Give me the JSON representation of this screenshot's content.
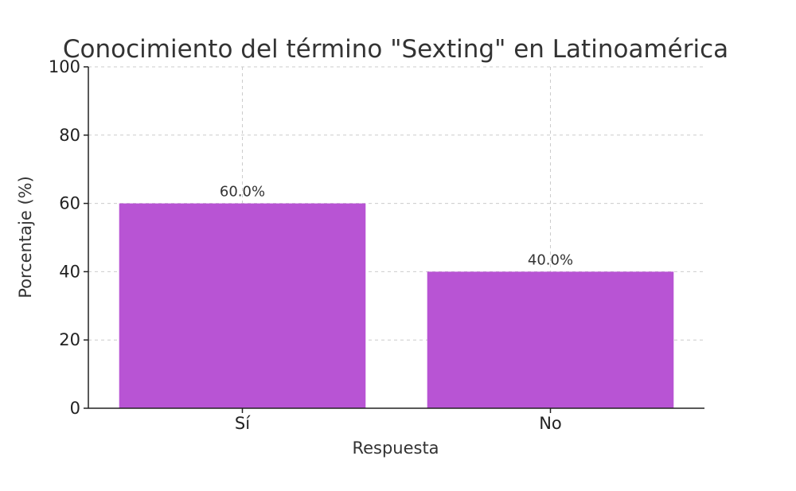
{
  "chart_data": {
    "type": "bar",
    "title": "Conocimiento del término \"Sexting\" en Latinoamérica",
    "xlabel": "Respuesta",
    "ylabel": "Porcentaje (%)",
    "categories": [
      "Sí",
      "No"
    ],
    "values": [
      60,
      40
    ],
    "data_labels": [
      "60.0%",
      "40.0%"
    ],
    "ylim": [
      0,
      100
    ],
    "yticks": [
      0,
      20,
      40,
      60,
      80,
      100
    ],
    "grid": true,
    "bar_color": "#b854d4"
  }
}
